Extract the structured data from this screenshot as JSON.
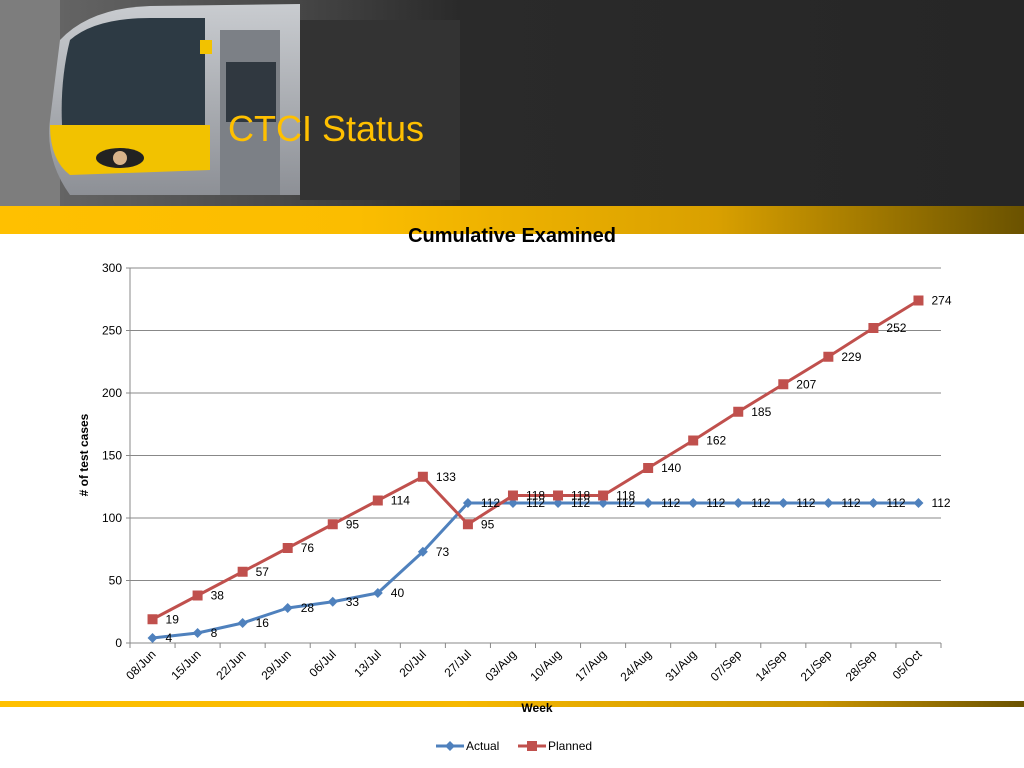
{
  "slide": {
    "title": "CTCI Status"
  },
  "colors": {
    "accent_gold": "#ffc000",
    "actual": "#4f81bd",
    "planned": "#c0504d"
  },
  "chart_data": {
    "type": "line",
    "title": "Cumulative Examined",
    "xlabel": "Week",
    "ylabel": "# of test cases",
    "ylim": [
      0,
      300
    ],
    "yticks": [
      "0",
      "50",
      "100",
      "150",
      "200",
      "250",
      "300"
    ],
    "grid": true,
    "legend": "bottom",
    "categories": [
      "08/Jun",
      "15/Jun",
      "22/Jun",
      "29/Jun",
      "06/Jul",
      "13/Jul",
      "20/Jul",
      "27/Jul",
      "03/Aug",
      "10/Aug",
      "17/Aug",
      "24/Aug",
      "31/Aug",
      "07/Sep",
      "14/Sep",
      "21/Sep",
      "28/Sep",
      "05/Oct"
    ],
    "series": [
      {
        "name": "Actual",
        "marker": "diamond",
        "values": [
          4,
          8,
          16,
          28,
          33,
          40,
          73,
          112,
          112,
          112,
          112,
          112,
          112,
          112,
          112,
          112,
          112,
          112
        ]
      },
      {
        "name": "Planned",
        "marker": "square",
        "values": [
          19,
          38,
          57,
          76,
          95,
          114,
          133,
          95,
          118,
          118,
          118,
          140,
          162,
          185,
          207,
          229,
          252,
          274
        ]
      }
    ]
  }
}
